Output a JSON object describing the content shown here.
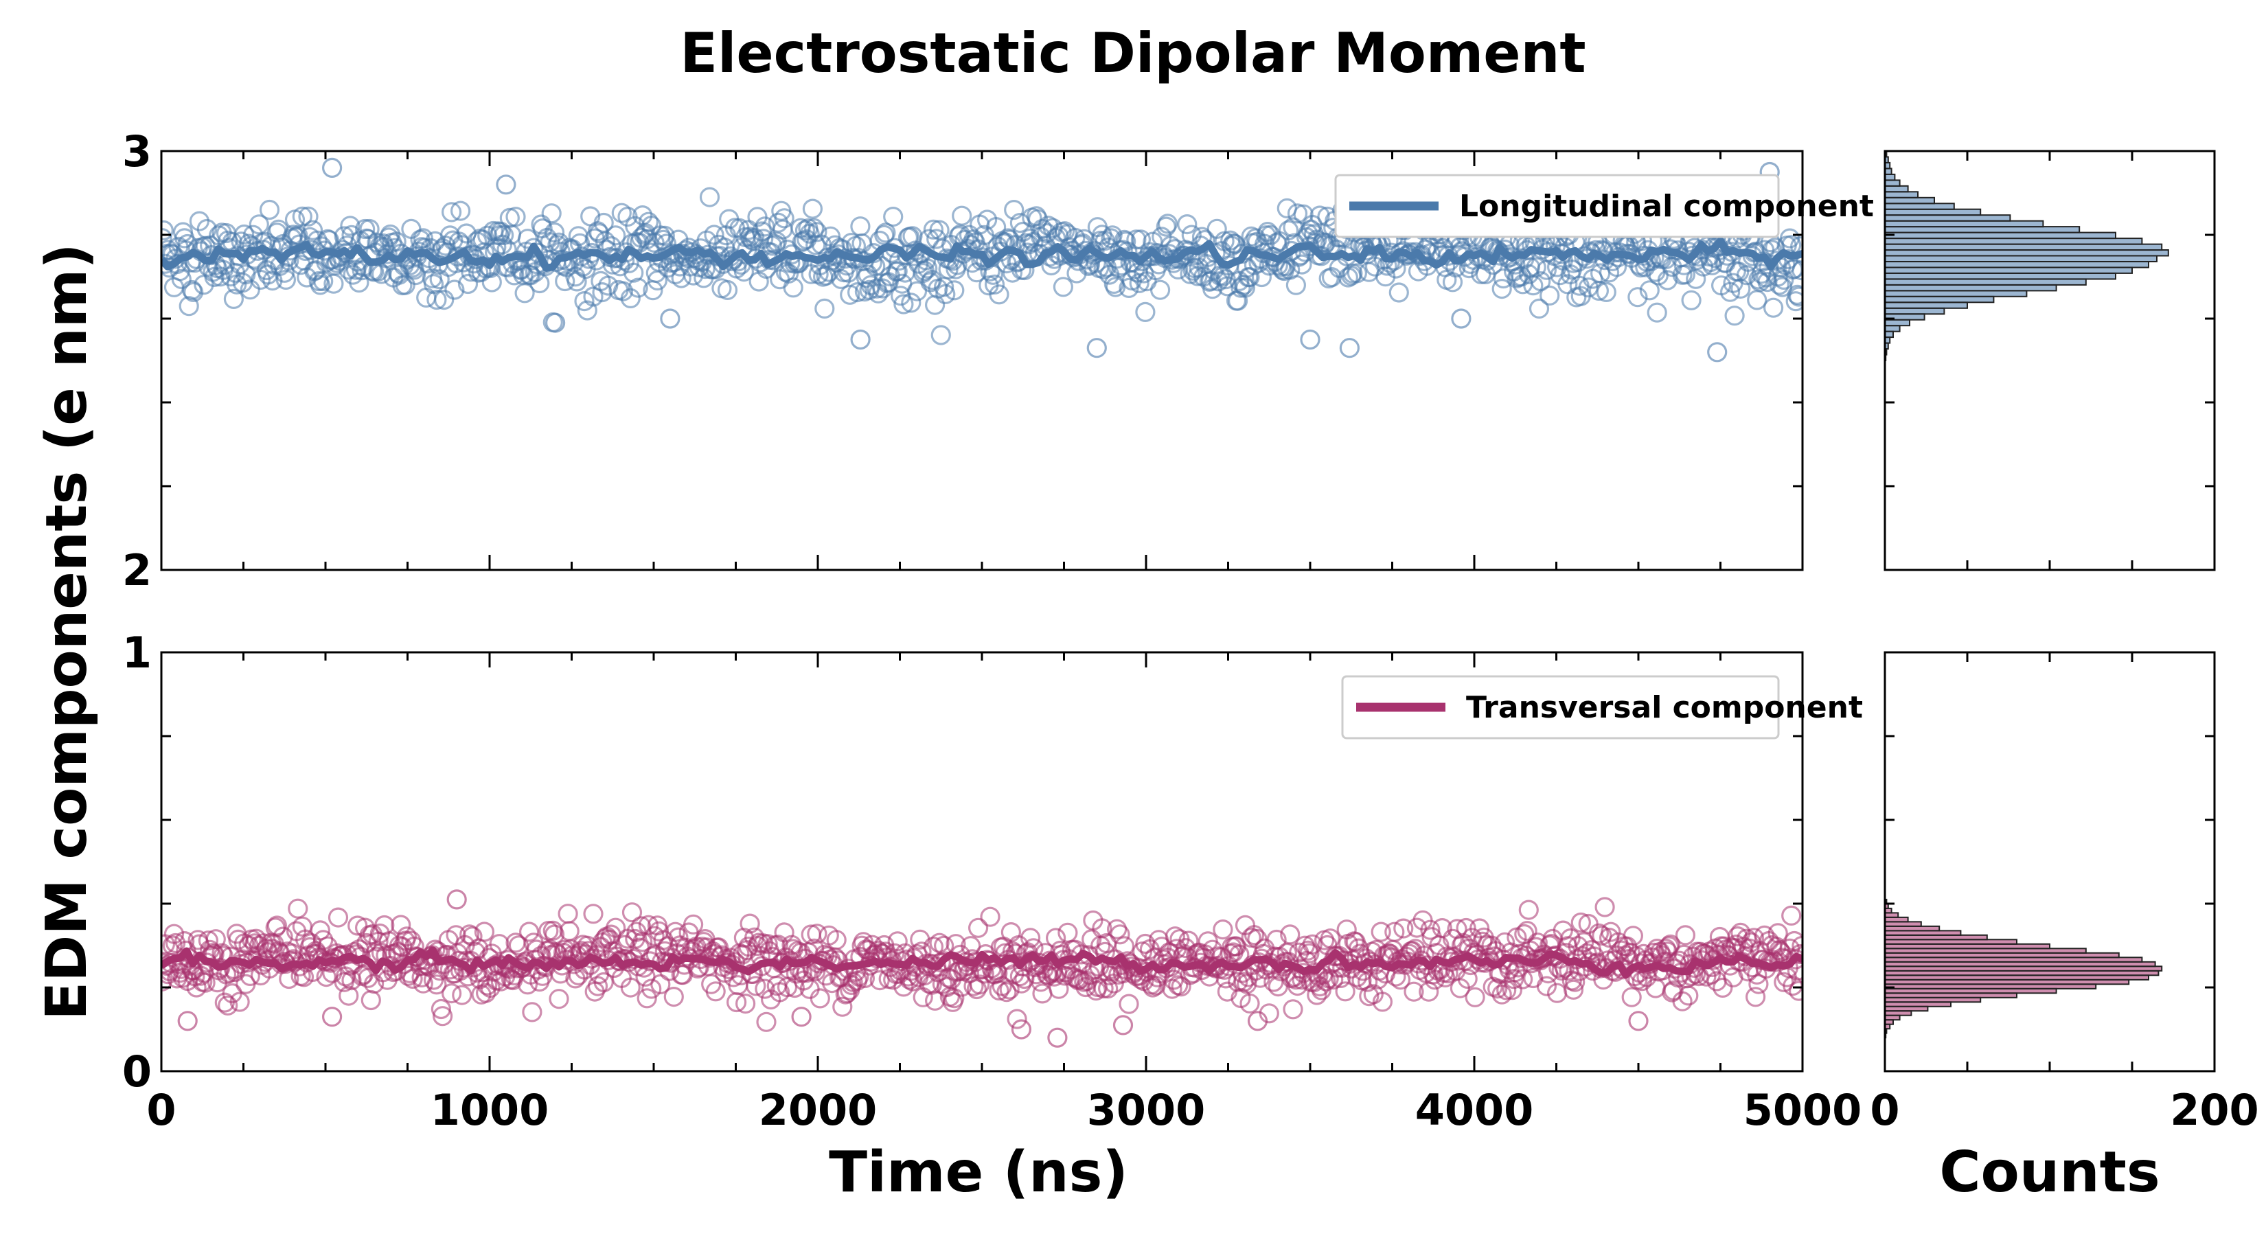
{
  "chart_data": {
    "type": "scatter",
    "title": "Electrostatic Dipolar Moment",
    "ylabel": "EDM components (e nm)",
    "xlabel": "Time (ns)",
    "hist_xlabel": "Counts",
    "xlim": [
      0,
      5000
    ],
    "xticks": [
      "0",
      "1000",
      "2000",
      "3000",
      "4000",
      "5000"
    ],
    "hist_xlim": [
      0,
      200
    ],
    "hist_xticks": [
      "0",
      "200"
    ],
    "panels": [
      {
        "name": "longitudinal",
        "legend": "Longitudinal component",
        "color": "#4b7aab",
        "ylim": [
          2,
          3
        ],
        "yticks": [
          "2",
          "3"
        ],
        "mean": 2.75,
        "spread": 0.045,
        "n_points": 1100,
        "line_points": 260,
        "outliers": [
          {
            "x": 520,
            "y": 2.96
          },
          {
            "x": 2130,
            "y": 2.55
          },
          {
            "x": 2850,
            "y": 2.53
          },
          {
            "x": 4740,
            "y": 2.52
          },
          {
            "x": 1200,
            "y": 2.59
          },
          {
            "x": 3500,
            "y": 2.55
          },
          {
            "x": 3620,
            "y": 2.53
          },
          {
            "x": 4900,
            "y": 2.95
          },
          {
            "x": 1050,
            "y": 2.92
          },
          {
            "x": 3960,
            "y": 2.6
          },
          {
            "x": 1550,
            "y": 2.6
          }
        ],
        "hist": [
          0.5,
          1,
          2,
          3,
          5,
          9,
          15,
          24,
          36,
          50,
          66,
          86,
          104,
          122,
          140,
          150,
          160,
          165,
          172,
          168,
          156,
          140,
          118,
          96,
          76,
          58,
          42,
          30,
          20,
          14,
          9,
          6,
          4,
          3,
          2,
          1
        ],
        "hist_range": [
          2.5,
          3.0
        ]
      },
      {
        "name": "transversal",
        "legend": "Transversal component",
        "color": "#a8326e",
        "ylim": [
          0,
          1
        ],
        "yticks": [
          "0",
          "1"
        ],
        "mean": 0.26,
        "spread": 0.04,
        "n_points": 1100,
        "line_points": 260,
        "outliers": [
          {
            "x": 900,
            "y": 0.41
          },
          {
            "x": 2620,
            "y": 0.1
          },
          {
            "x": 2730,
            "y": 0.08
          },
          {
            "x": 2930,
            "y": 0.11
          },
          {
            "x": 520,
            "y": 0.13
          },
          {
            "x": 3340,
            "y": 0.12
          },
          {
            "x": 1950,
            "y": 0.13
          },
          {
            "x": 4500,
            "y": 0.12
          },
          {
            "x": 80,
            "y": 0.12
          }
        ],
        "hist": [
          0.5,
          1,
          3,
          5,
          9,
          16,
          26,
          40,
          58,
          80,
          104,
          128,
          148,
          160,
          166,
          168,
          164,
          156,
          142,
          122,
          100,
          80,
          62,
          46,
          33,
          22,
          14,
          8,
          4,
          2,
          1
        ],
        "hist_range": [
          0.08,
          0.41
        ]
      }
    ]
  }
}
